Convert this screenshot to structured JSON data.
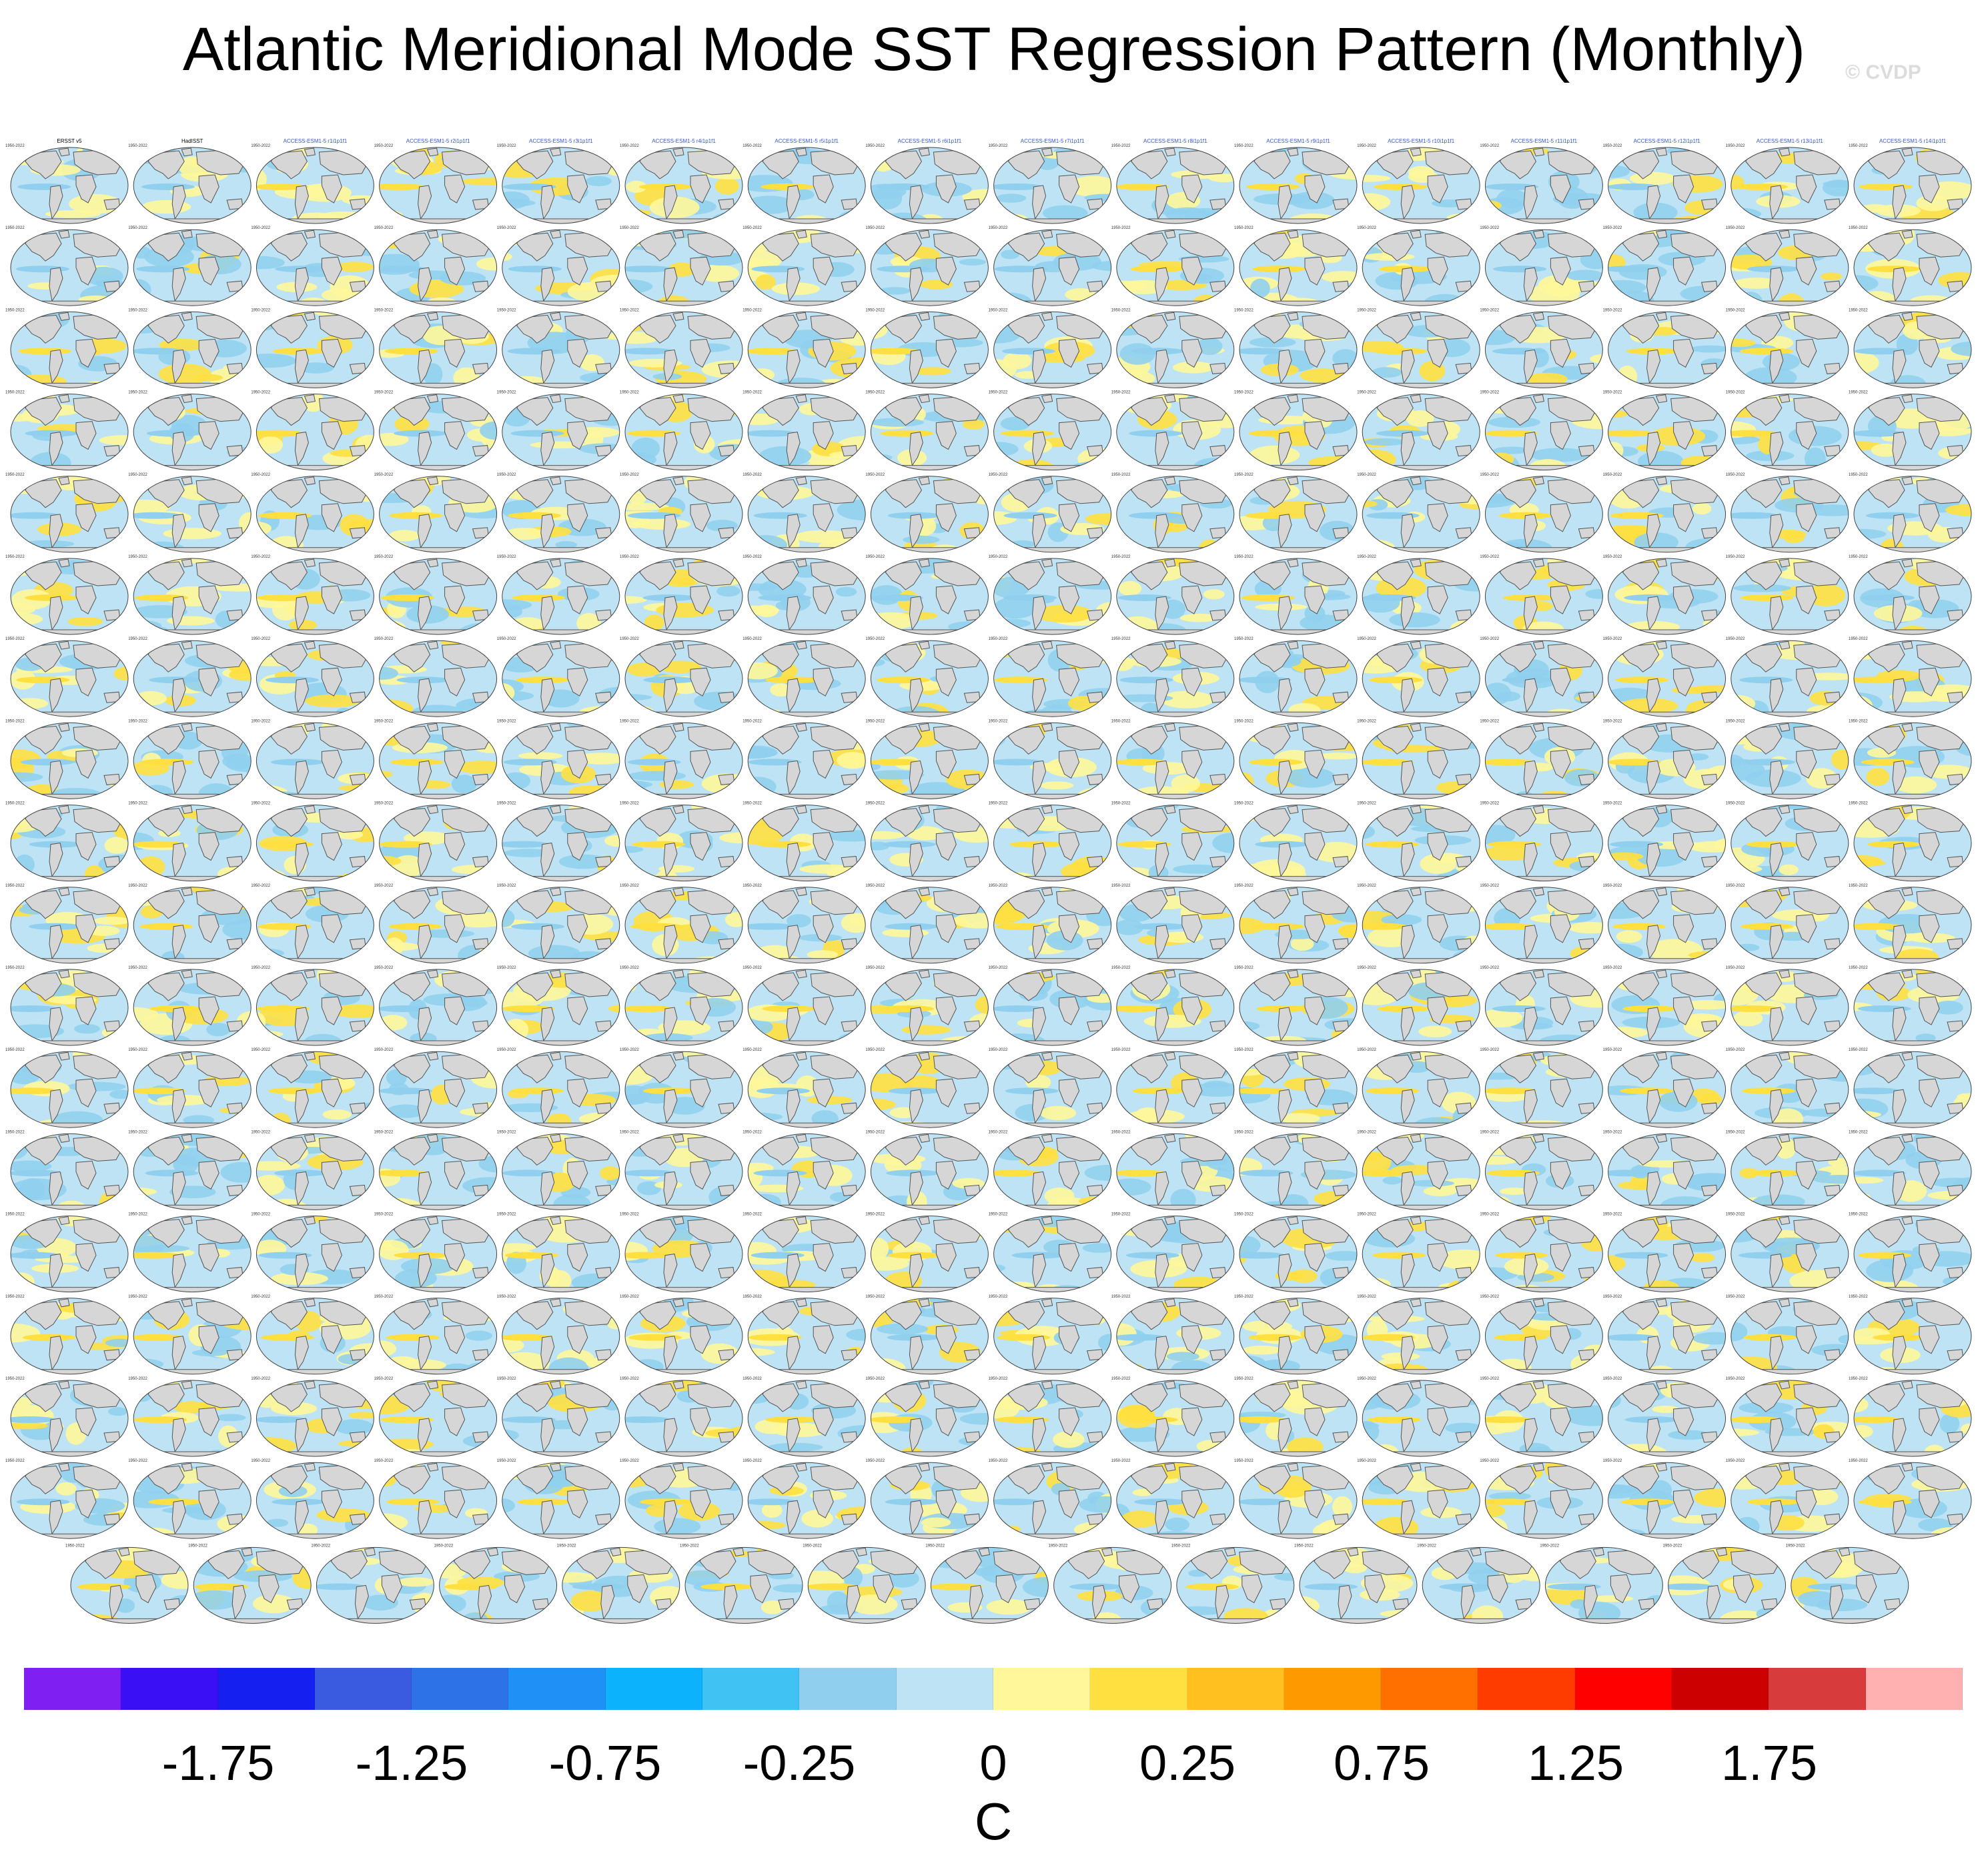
{
  "title": "Atlantic Meridional Mode SST Regression Pattern (Monthly)",
  "watermark": "© CVDP",
  "colorbar": {
    "units": "C",
    "tick_labels": [
      "-1.75",
      "-1.25",
      "-0.75",
      "-0.25",
      "0",
      "0.25",
      "0.75",
      "1.25",
      "1.75"
    ],
    "colors": [
      "#7f1ff2",
      "#3a0ff5",
      "#1520f0",
      "#3a5ae0",
      "#2e72e8",
      "#1f90f5",
      "#0cb2fb",
      "#40c2f2",
      "#90d0ee",
      "#bde3f5",
      "#fff79a",
      "#ffe040",
      "#ffc020",
      "#ff9900",
      "#ff7000",
      "#ff3c00",
      "#ff0000",
      "#cc0000",
      "#d83b3b",
      "#ffb0b0"
    ]
  },
  "map_colors": {
    "ocean_light_blue": "#bde3f5",
    "ocean_blue": "#90d0ee",
    "ocean_yellow": "#fff79a",
    "ocean_gold": "#ffe040",
    "land": "#d6d6d6",
    "coast": "#555555"
  },
  "chart_data": {
    "type": "heatmap",
    "title": "Atlantic Meridional Mode SST Regression Pattern (Monthly)",
    "units": "C",
    "colorbar_ticks": [
      -1.75,
      -1.25,
      -0.75,
      -0.25,
      0,
      0.25,
      0.75,
      1.25,
      1.75
    ],
    "grid": {
      "full_rows": 17,
      "panels_per_full_row": 16,
      "last_row_panels": 15
    },
    "panel_titles_row1_visible": [
      "ERSST v5",
      "HadISST",
      "ACCESS-ESM1-5 r1i1p1f1",
      "ACCESS-ESM1-5 r2i1p1f1",
      "ACCESS-ESM1-5 r3i1p1f1",
      "ACCESS-ESM1-5 r4i1p1f1",
      "ACCESS-ESM1-5 r5i1p1f1",
      "ACCESS-ESM1-5 r6i1p1f1",
      "ACCESS-ESM1-5 r7i1p1f1",
      "ACCESS-ESM1-5 r8i1p1f1",
      "ACCESS-ESM1-5 r9i1p1f1",
      "ACCESS-ESM1-5 r10i1p1f1",
      "ACCESS-ESM1-5 r11i1p1f1",
      "ACCESS-ESM1-5 r12i1p1f1",
      "ACCESS-ESM1-5 r13i1p1f1",
      "ACCESS-ESM1-5 r14i1p1f1"
    ],
    "panel_year_label": "1950-2022"
  }
}
